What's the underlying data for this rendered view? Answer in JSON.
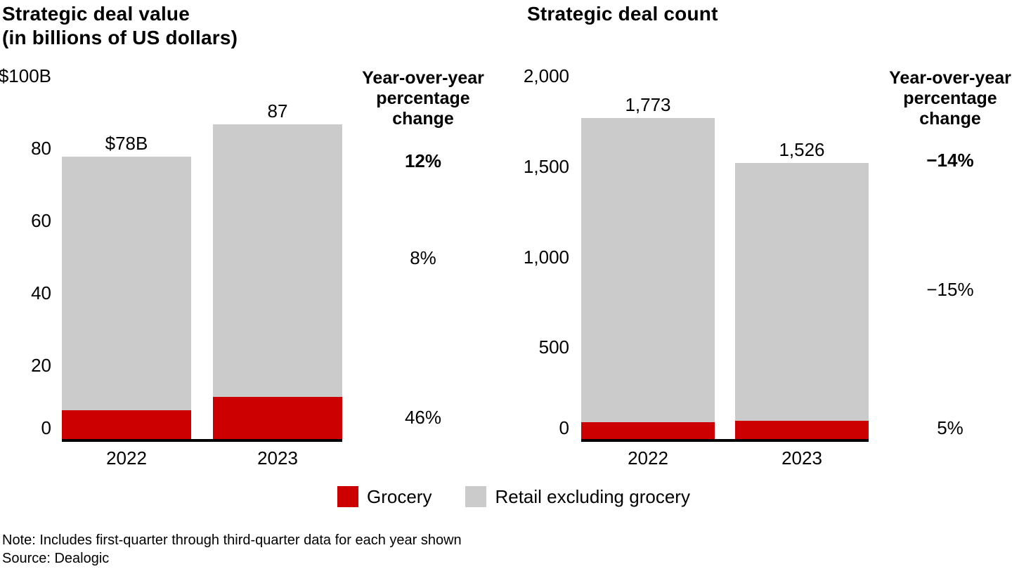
{
  "figure": {
    "legend": [
      {
        "label": "Grocery",
        "color": "#cc0000"
      },
      {
        "label": "Retail excluding grocery",
        "color": "#cbcbcb"
      }
    ],
    "note": "Note: Includes first-quarter through third-quarter data for each year shown",
    "source": "Source: Dealogic"
  },
  "chart_data": [
    {
      "type": "bar",
      "stacked": true,
      "title": "Strategic deal value",
      "subtitle": "(in billions of US dollars)",
      "categories": [
        "2022",
        "2023"
      ],
      "series": [
        {
          "name": "Grocery",
          "color": "#cc0000",
          "values": [
            8,
            11.7
          ]
        },
        {
          "name": "Retail excluding grocery",
          "color": "#cbcbcb",
          "values": [
            70,
            75.3
          ]
        }
      ],
      "totals": [
        78,
        87
      ],
      "total_labels": [
        "$78B",
        "87"
      ],
      "ylim": [
        0,
        100
      ],
      "grid": false,
      "yticks": [
        {
          "label": "0",
          "value": 0
        },
        {
          "label": "20",
          "value": 20
        },
        {
          "label": "40",
          "value": 40
        },
        {
          "label": "60",
          "value": 60
        },
        {
          "label": "80",
          "value": 80
        },
        {
          "label": "$100B",
          "value": 100
        }
      ],
      "yoy": {
        "header": "Year-over-year percentage change",
        "rows": [
          {
            "value": "12%",
            "applies_to": "total",
            "emphasis": true
          },
          {
            "value": "8%",
            "applies_to": "Retail excluding grocery",
            "emphasis": false
          },
          {
            "value": "46%",
            "applies_to": "Grocery",
            "emphasis": false
          }
        ]
      }
    },
    {
      "type": "bar",
      "stacked": true,
      "title": "Strategic deal count",
      "subtitle": "",
      "categories": [
        "2022",
        "2023"
      ],
      "series": [
        {
          "name": "Grocery",
          "color": "#cc0000",
          "values": [
            95,
            100
          ]
        },
        {
          "name": "Retail excluding grocery",
          "color": "#cbcbcb",
          "values": [
            1678,
            1426
          ]
        }
      ],
      "totals": [
        1773,
        1526
      ],
      "total_labels": [
        "1,773",
        "1,526"
      ],
      "ylim": [
        0,
        2000
      ],
      "grid": false,
      "yticks": [
        {
          "label": "0",
          "value": 0
        },
        {
          "label": "500",
          "value": 500
        },
        {
          "label": "1,000",
          "value": 1000
        },
        {
          "label": "1,500",
          "value": 1500
        },
        {
          "label": "2,000",
          "value": 2000
        }
      ],
      "yoy": {
        "header": "Year-over-year percentage change",
        "rows": [
          {
            "value": "−14%",
            "applies_to": "total",
            "emphasis": true
          },
          {
            "value": "−15%",
            "applies_to": "Retail excluding grocery",
            "emphasis": false
          },
          {
            "value": "5%",
            "applies_to": "Grocery",
            "emphasis": false
          }
        ]
      }
    }
  ]
}
